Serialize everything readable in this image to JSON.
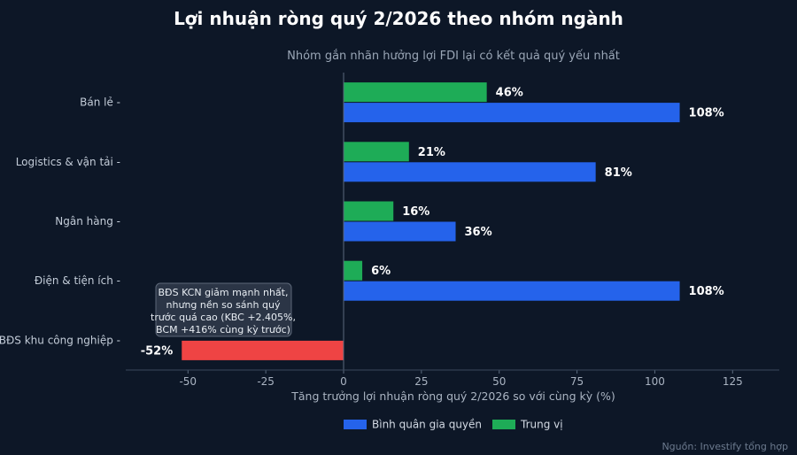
{
  "title": "Lợi nhuận ròng quý 2/2026 theo nhóm ngành",
  "subtitle": "Nhóm gắn nhãn hưởng lợi FDI lại có kết quả quý yếu nhất",
  "source": "Nguồn: Investify tổng hợp",
  "colors": {
    "background": "#0d1727",
    "weighted": "#2563eb",
    "median": "#1eac57",
    "negative": "#ef4444"
  },
  "chart_data": {
    "type": "bar",
    "orientation": "horizontal",
    "title": "Lợi nhuận ròng quý 2/2026 theo nhóm ngành",
    "subtitle": "Nhóm gắn nhãn hưởng lợi FDI lại có kết quả quý yếu nhất",
    "xlabel": "Tăng trưởng lợi nhuận ròng quý 2/2026 so với cùng kỳ (%)",
    "ylabel": "",
    "xlim": [
      -70,
      140
    ],
    "xticks": [
      -50,
      -25,
      0,
      25,
      50,
      75,
      100,
      125
    ],
    "grid": false,
    "legend_position": "bottom-center",
    "categories": [
      "Bán lẻ",
      "Logistics & vận tải",
      "Ngân hàng",
      "Điện & tiện ích",
      "BĐS khu công nghiệp"
    ],
    "series": [
      {
        "name": "Bình quân gia quyền",
        "color": "#2563eb",
        "values": [
          108,
          81,
          36,
          108,
          -52
        ],
        "labels": [
          "108%",
          "81%",
          "36%",
          "108%",
          "-52%"
        ]
      },
      {
        "name": "Trung vị",
        "color": "#1eac57",
        "values": [
          46,
          21,
          16,
          6,
          null
        ],
        "labels": [
          "46%",
          "21%",
          "16%",
          "6%",
          ""
        ]
      }
    ],
    "annotation": {
      "text_lines": [
        "BĐS KCN giảm mạnh nhất,",
        "nhưng nền so sánh quý",
        "trước quá cao (KBC +2.405%,",
        "BCM +416% cùng kỳ trước)"
      ],
      "target_category": "BĐS khu công nghiệp"
    }
  }
}
